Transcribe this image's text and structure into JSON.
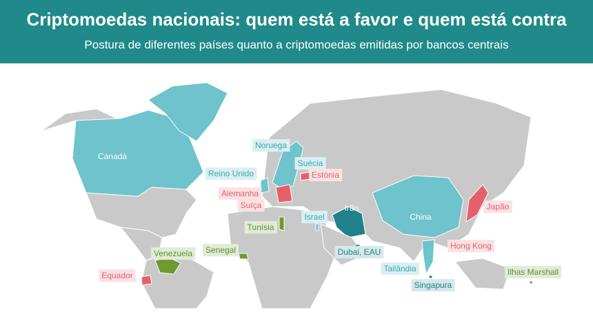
{
  "header": {
    "title": "Criptomoedas nacionais: quem está a favor e quem está contra",
    "subtitle": "Postura de diferentes países quanto a criptomoedas emitidas por bancos centrais"
  },
  "labels": [
    {
      "text": "Canadá",
      "color": "#ffffff",
      "box": false
    },
    {
      "text": "Noruega",
      "color": "#3aa6b5",
      "box": true
    },
    {
      "text": "Reino Unido",
      "color": "#3aa6b5",
      "box": true
    },
    {
      "text": "Suécia",
      "color": "#3aa6b5",
      "box": true
    },
    {
      "text": "Estónia",
      "color": "#e5606a",
      "box": true
    },
    {
      "text": "Alemanha",
      "color": "#e5606a",
      "box": true
    },
    {
      "text": "Suíça",
      "color": "#e5606a",
      "box": true
    },
    {
      "text": "Irão",
      "color": "#ffffff",
      "box": false
    },
    {
      "text": "Israel",
      "color": "#3aa6b5",
      "box": true
    },
    {
      "text": "Tunísia",
      "color": "#5f8f2a",
      "box": true
    },
    {
      "text": "China",
      "color": "#ffffff",
      "box": false
    },
    {
      "text": "Japão",
      "color": "#e5606a",
      "box": true
    },
    {
      "text": "Hong Kong",
      "color": "#e5606a",
      "box": true
    },
    {
      "text": "Senegal",
      "color": "#5f8f2a",
      "box": true
    },
    {
      "text": "Venezuela",
      "color": "#5f8f2a",
      "box": true
    },
    {
      "text": "Dubai, EAU",
      "color": "#1f7f86",
      "box": true
    },
    {
      "text": "Tailândia",
      "color": "#3aa6b5",
      "box": true
    },
    {
      "text": "Singapura",
      "color": "#1f7f86",
      "box": true
    },
    {
      "text": "Equador",
      "color": "#e5606a",
      "box": true
    },
    {
      "text": "Ilhas Marshall",
      "color": "#5f8f2a",
      "box": true
    }
  ]
}
